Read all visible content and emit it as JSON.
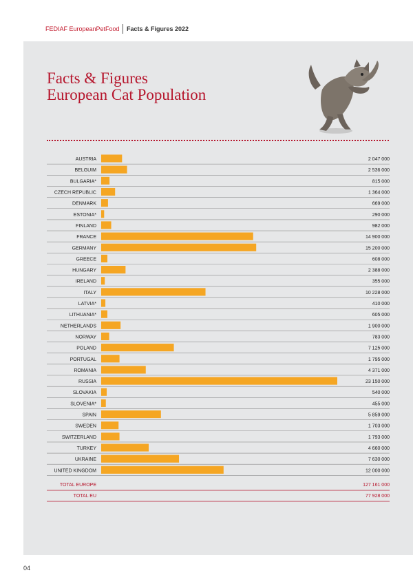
{
  "header": {
    "brand": "FEDIAF EuropeanPetFood",
    "publication": "Facts & Figures 2022"
  },
  "title_lines": [
    "Facts & Figures",
    "European Cat Population"
  ],
  "page_number": "04",
  "colors": {
    "bar": "#f5a623",
    "accent": "#b6162d",
    "panel": "#e6e7e8"
  },
  "chart_data": {
    "type": "bar",
    "orientation": "horizontal",
    "categories": [
      "AUSTRIA",
      "BELGUIM",
      "BULGARIA*",
      "CZECH REPUBLIC",
      "DENMARK",
      "ESTONIA*",
      "FINLAND",
      "FRANCE",
      "GERMANY",
      "GREECE",
      "HUNGARY",
      "IRELAND",
      "ITALY",
      "LATVIA*",
      "LITHUANIA*",
      "NETHERLANDS",
      "NORWAY",
      "POLAND",
      "PORTUGAL",
      "ROMANIA",
      "RUSSIA",
      "SLOVAKIA",
      "SLOVENIA*",
      "SPAIN",
      "SWEDEN",
      "SWITZERLAND",
      "TURKEY",
      "UKRAINE",
      "UNITED KINGDOM"
    ],
    "values": [
      2047000,
      2536000,
      815000,
      1364000,
      669000,
      290000,
      982000,
      14900000,
      15200000,
      608000,
      2388000,
      355000,
      10228000,
      410000,
      605000,
      1900000,
      783000,
      7125000,
      1795000,
      4371000,
      23150000,
      540000,
      455000,
      5859000,
      1703000,
      1793000,
      4660000,
      7630000,
      12000000
    ],
    "value_labels": [
      "2 047 000",
      "2 536 000",
      "815 000",
      "1 364 000",
      "669 000",
      "290 000",
      "982 000",
      "14 900 000",
      "15 200 000",
      "608 000",
      "2 388 000",
      "355 000",
      "10 228 000",
      "410 000",
      "605 000",
      "1 900 000",
      "783 000",
      "7 125 000",
      "1 795 000",
      "4 371 000",
      "23 150 000",
      "540 000",
      "455 000",
      "5 859 000",
      "1 703 000",
      "1 793 000",
      "4 660 000",
      "7 630 000",
      "12 000 000"
    ],
    "totals": [
      {
        "label": "TOTAL EUROPE",
        "value": "127 161 000"
      },
      {
        "label": "TOTAL EU",
        "value": "77 928 000"
      }
    ]
  }
}
